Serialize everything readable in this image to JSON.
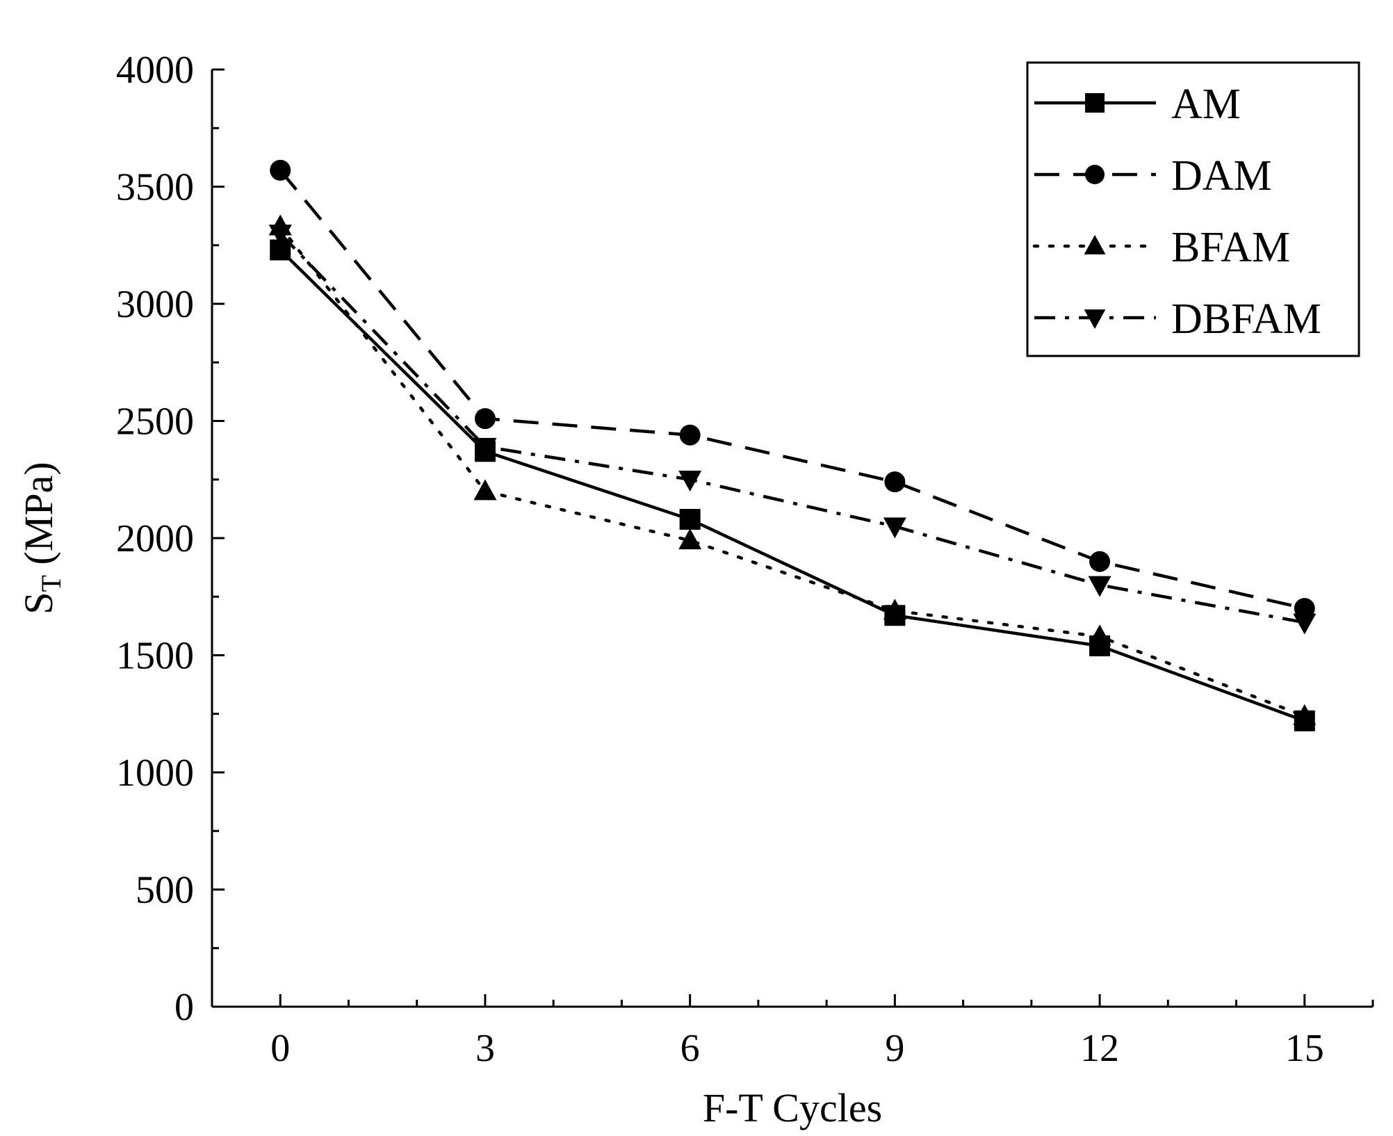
{
  "chart_data": {
    "type": "line",
    "title": "",
    "xlabel": "F-T Cycles",
    "ylabel_main": "S",
    "ylabel_sub": "T",
    "ylabel_unit": " (MPa)",
    "x": [
      0,
      3,
      6,
      9,
      12,
      15
    ],
    "xlim": [
      -1,
      16
    ],
    "ylim": [
      0,
      4000
    ],
    "xticks": [
      0,
      3,
      6,
      9,
      12,
      15
    ],
    "yticks": [
      0,
      500,
      1000,
      1500,
      2000,
      2500,
      3000,
      3500,
      4000
    ],
    "grid": false,
    "legend_position": "top-right",
    "series": [
      {
        "name": "AM",
        "marker": "square",
        "line_style": "solid",
        "values": [
          3230,
          2370,
          2080,
          1670,
          1540,
          1220
        ]
      },
      {
        "name": "DAM",
        "marker": "circle",
        "line_style": "dash",
        "values": [
          3570,
          2510,
          2440,
          2240,
          1900,
          1700
        ]
      },
      {
        "name": "BFAM",
        "marker": "triangle-up",
        "line_style": "dot",
        "values": [
          3330,
          2200,
          1990,
          1690,
          1580,
          1240
        ]
      },
      {
        "name": "DBFAM",
        "marker": "triangle-down",
        "line_style": "dash-dot",
        "values": [
          3300,
          2390,
          2250,
          2050,
          1800,
          1640
        ]
      }
    ],
    "colors": {
      "line": "#000000",
      "background": "#ffffff"
    }
  }
}
